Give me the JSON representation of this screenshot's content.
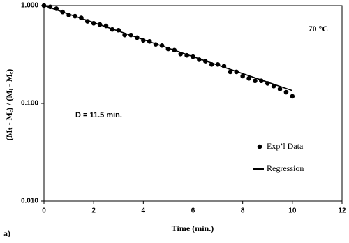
{
  "chart_data": {
    "type": "scatter",
    "ylabel": "(Mₜ - Mₑ) / (Mᵢ - Mₑ)",
    "xlabel": "Time (min.)",
    "annotations": [
      "70 °C",
      "D = 11.5 min."
    ],
    "panel_label": "a)",
    "xlim": [
      0,
      12
    ],
    "xticks": [
      0,
      2,
      4,
      6,
      8,
      10,
      12
    ],
    "ylim": [
      0.01,
      1
    ],
    "yticks": [
      {
        "value": 1,
        "label": "1.000"
      },
      {
        "value": 0.1,
        "label": "0.100"
      },
      {
        "value": 0.01,
        "label": "0.010"
      }
    ],
    "ylog": true,
    "legend": "right",
    "series": [
      {
        "name": "Exp’l Data",
        "type": "scatter",
        "color": "#000000",
        "x": [
          0,
          0.25,
          0.5,
          0.75,
          1,
          1.25,
          1.5,
          1.75,
          2,
          2.25,
          2.5,
          2.75,
          3,
          3.25,
          3.5,
          3.75,
          4,
          4.25,
          4.5,
          4.75,
          5,
          5.25,
          5.5,
          5.75,
          6,
          6.25,
          6.5,
          6.75,
          7,
          7.25,
          7.5,
          7.75,
          8,
          8.25,
          8.5,
          8.75,
          9,
          9.25,
          9.5,
          9.75,
          10
        ],
        "values": [
          1.0,
          0.97,
          0.93,
          0.86,
          0.8,
          0.78,
          0.75,
          0.69,
          0.66,
          0.64,
          0.62,
          0.57,
          0.56,
          0.5,
          0.5,
          0.47,
          0.44,
          0.43,
          0.4,
          0.39,
          0.36,
          0.35,
          0.32,
          0.31,
          0.3,
          0.28,
          0.27,
          0.25,
          0.25,
          0.24,
          0.21,
          0.21,
          0.19,
          0.18,
          0.17,
          0.17,
          0.16,
          0.15,
          0.14,
          0.13,
          0.118
        ]
      },
      {
        "name": "Regression",
        "type": "line",
        "color": "#000000",
        "x": [
          0,
          10
        ],
        "values": [
          1.0,
          0.135
        ]
      }
    ]
  }
}
